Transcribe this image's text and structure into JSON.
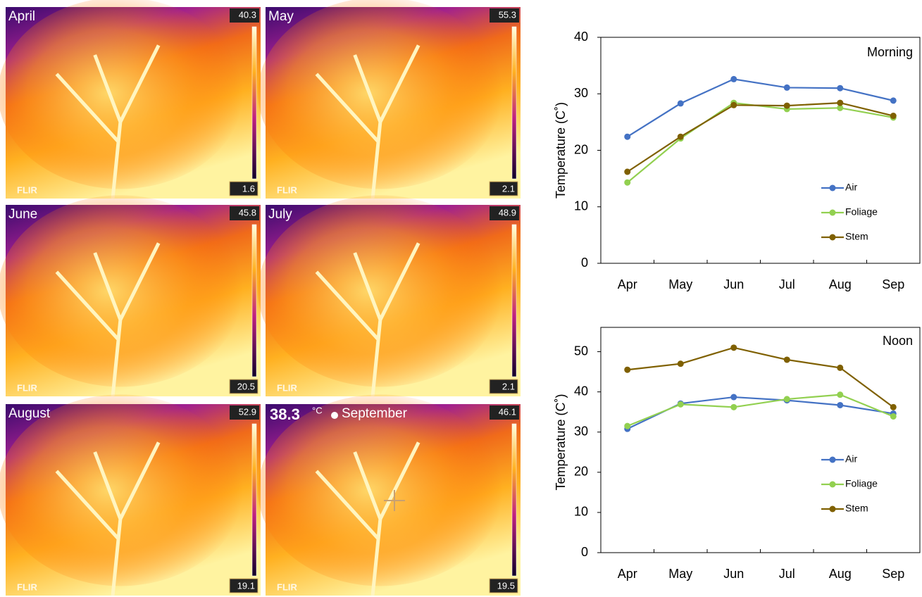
{
  "images": [
    {
      "label": "April",
      "max": 40.3,
      "min": 1.6,
      "logo": "FLIR"
    },
    {
      "label": "May",
      "max": 55.3,
      "min": 2.1,
      "logo": "FLIR"
    },
    {
      "label": "June",
      "max": 45.8,
      "min": 20.5,
      "logo": "FLIR"
    },
    {
      "label": "July",
      "max": 48.9,
      "min": 2.1,
      "logo": "FLIR"
    },
    {
      "label": "August",
      "max": 52.9,
      "min": 19.1,
      "logo": "FLIR"
    },
    {
      "label": "September",
      "max": 46.1,
      "min": 19.5,
      "logo": "FLIR",
      "reading": 38.3,
      "unit": "°C"
    }
  ],
  "chart_data": [
    {
      "type": "line",
      "title": "Morning",
      "y_label": "Temperature (C˚)",
      "categories": [
        "Apr",
        "May",
        "Jun",
        "Jul",
        "Aug",
        "Sep"
      ],
      "ylim": [
        0,
        40
      ],
      "yticks": [
        0,
        10,
        20,
        30,
        40
      ],
      "legend": "lower right",
      "series": [
        {
          "name": "Air",
          "color": "#4472c4",
          "values": [
            22.4,
            28.3,
            32.6,
            31.1,
            31.0,
            28.8
          ]
        },
        {
          "name": "Foliage",
          "color": "#92d050",
          "values": [
            14.3,
            22.1,
            28.4,
            27.3,
            27.5,
            25.8
          ]
        },
        {
          "name": "Stem",
          "color": "#7f6000",
          "values": [
            16.2,
            22.4,
            28.0,
            27.9,
            28.4,
            26.1
          ]
        }
      ]
    },
    {
      "type": "line",
      "title": "Noon",
      "y_label": "Temperature (C˚)",
      "categories": [
        "Apr",
        "May",
        "Jun",
        "Jul",
        "Aug",
        "Sep"
      ],
      "ylim": [
        0,
        55
      ],
      "yticks": [
        0,
        10,
        20,
        30,
        40,
        50
      ],
      "legend": "lower right",
      "series": [
        {
          "name": "Air",
          "color": "#4472c4",
          "values": [
            30.8,
            37.1,
            38.7,
            37.9,
            36.7,
            34.6
          ]
        },
        {
          "name": "Foliage",
          "color": "#92d050",
          "values": [
            31.5,
            36.9,
            36.2,
            38.2,
            39.3,
            33.9
          ]
        },
        {
          "name": "Stem",
          "color": "#7f6000",
          "values": [
            45.5,
            47.0,
            51.0,
            48.0,
            46.0,
            36.2
          ]
        }
      ]
    }
  ]
}
